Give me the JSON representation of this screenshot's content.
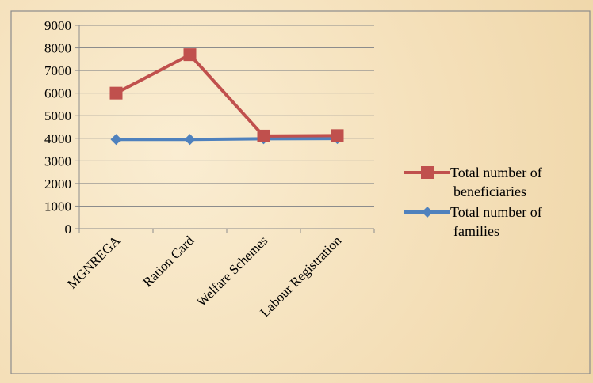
{
  "chart_data": {
    "type": "line",
    "categories": [
      "MGNREGA",
      "Ration Card",
      "Welfare Schemes",
      "Labour Registration"
    ],
    "ylim": [
      0,
      9000
    ],
    "yticks": [
      0,
      1000,
      2000,
      3000,
      4000,
      5000,
      6000,
      7000,
      8000,
      9000
    ],
    "grid": true,
    "legend_position": "right",
    "series": [
      {
        "name": "Total number of beneficiaries",
        "legend_lines": [
          "Total number of",
          "beneficiaries"
        ],
        "values": [
          6000,
          7700,
          4100,
          4120
        ],
        "color": "#c0504d",
        "marker": "square"
      },
      {
        "name": "Total number of families",
        "legend_lines": [
          "Total number of",
          "families"
        ],
        "values": [
          3950,
          3950,
          3980,
          3990
        ],
        "color": "#4f81bd",
        "marker": "diamond"
      }
    ]
  }
}
